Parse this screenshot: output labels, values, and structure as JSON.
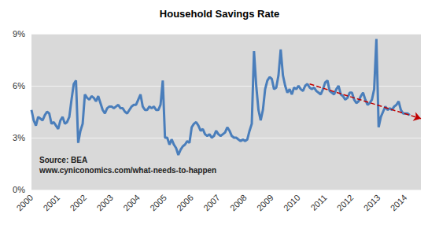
{
  "chart_data": {
    "type": "line",
    "title": "Household Savings Rate",
    "annotations": [
      "Source: BEA",
      "www.cyniconomics.com/what-needs-to-happen"
    ],
    "categories": [
      "2000",
      null,
      null,
      null,
      null,
      null,
      null,
      null,
      null,
      null,
      null,
      null,
      "2001",
      null,
      null,
      null,
      null,
      null,
      null,
      null,
      null,
      null,
      null,
      null,
      "2002",
      null,
      null,
      null,
      null,
      null,
      null,
      null,
      null,
      null,
      null,
      null,
      "2003",
      null,
      null,
      null,
      null,
      null,
      null,
      null,
      null,
      null,
      null,
      null,
      "2004",
      null,
      null,
      null,
      null,
      null,
      null,
      null,
      null,
      null,
      null,
      null,
      "2005",
      null,
      null,
      null,
      null,
      null,
      null,
      null,
      null,
      null,
      null,
      null,
      "2006",
      null,
      null,
      null,
      null,
      null,
      null,
      null,
      null,
      null,
      null,
      null,
      "2007",
      null,
      null,
      null,
      null,
      null,
      null,
      null,
      null,
      null,
      null,
      null,
      "2008",
      null,
      null,
      null,
      null,
      null,
      null,
      null,
      null,
      null,
      null,
      null,
      "2009",
      null,
      null,
      null,
      null,
      null,
      null,
      null,
      null,
      null,
      null,
      null,
      "2010",
      null,
      null,
      null,
      null,
      null,
      null,
      null,
      null,
      null,
      null,
      null,
      "2011",
      null,
      null,
      null,
      null,
      null,
      null,
      null,
      null,
      null,
      null,
      null,
      "2012",
      null,
      null,
      null,
      null,
      null,
      null,
      null,
      null,
      null,
      null,
      null,
      "2013",
      null,
      null,
      null,
      null,
      null,
      null,
      null,
      null,
      null,
      null,
      null,
      "2014",
      null,
      null,
      null,
      null,
      null,
      null,
      null
    ],
    "series": [
      {
        "color": "#4a7ebb",
        "line_style": "solid",
        "values": [
          4.6,
          4.0,
          3.7,
          4.2,
          4.1,
          4.0,
          4.3,
          4.5,
          4.4,
          3.8,
          3.9,
          3.7,
          3.5,
          4.0,
          4.2,
          3.8,
          3.9,
          4.2,
          5.2,
          6.1,
          6.3,
          2.7,
          3.4,
          3.8,
          5.5,
          5.3,
          5.2,
          5.4,
          5.3,
          5.1,
          5.4,
          5.0,
          4.6,
          4.4,
          4.7,
          4.8,
          4.8,
          4.7,
          4.8,
          4.9,
          4.7,
          4.7,
          4.5,
          4.4,
          4.6,
          4.8,
          4.9,
          4.9,
          5.2,
          5.5,
          4.8,
          4.6,
          4.6,
          4.8,
          4.7,
          4.8,
          4.6,
          4.6,
          4.9,
          6.3,
          3.0,
          3.0,
          2.6,
          2.9,
          2.6,
          2.4,
          2.0,
          2.3,
          2.5,
          2.6,
          2.8,
          2.7,
          3.6,
          3.8,
          3.9,
          3.7,
          3.4,
          3.5,
          3.2,
          3.1,
          3.2,
          3.0,
          3.1,
          3.4,
          3.2,
          3.1,
          3.2,
          3.3,
          3.6,
          3.4,
          3.1,
          3.0,
          3.0,
          2.9,
          2.8,
          2.9,
          2.8,
          2.9,
          3.4,
          3.8,
          8.0,
          6.0,
          4.6,
          4.0,
          4.6,
          5.8,
          6.3,
          6.5,
          6.4,
          5.8,
          5.9,
          6.6,
          8.1,
          6.6,
          6.0,
          5.6,
          5.8,
          5.5,
          5.9,
          5.8,
          6.0,
          5.8,
          5.7,
          6.0,
          6.1,
          5.9,
          5.8,
          5.9,
          5.7,
          5.6,
          5.5,
          5.8,
          6.2,
          6.3,
          5.7,
          5.6,
          5.5,
          5.8,
          6.0,
          5.5,
          5.4,
          5.2,
          5.3,
          5.6,
          5.6,
          5.2,
          5.0,
          5.1,
          5.4,
          5.6,
          5.2,
          4.9,
          5.0,
          5.2,
          5.8,
          8.7,
          3.6,
          4.2,
          4.5,
          4.8,
          4.6,
          4.7,
          4.6,
          4.8,
          4.9,
          5.1,
          4.6,
          4.4,
          4.4,
          4.4,
          4.3,
          null,
          null,
          null,
          null,
          null
        ]
      },
      {
        "color": "#c00000",
        "line_style": "dashed",
        "marker": "arrow",
        "values": [
          null,
          null,
          null,
          null,
          null,
          null,
          null,
          null,
          null,
          null,
          null,
          null,
          null,
          null,
          null,
          null,
          null,
          null,
          null,
          null,
          null,
          null,
          null,
          null,
          null,
          null,
          null,
          null,
          null,
          null,
          null,
          null,
          null,
          null,
          null,
          null,
          null,
          null,
          null,
          null,
          null,
          null,
          null,
          null,
          null,
          null,
          null,
          null,
          null,
          null,
          null,
          null,
          null,
          null,
          null,
          null,
          null,
          null,
          null,
          null,
          null,
          null,
          null,
          null,
          null,
          null,
          null,
          null,
          null,
          null,
          null,
          null,
          null,
          null,
          null,
          null,
          null,
          null,
          null,
          null,
          null,
          null,
          null,
          null,
          null,
          null,
          null,
          null,
          null,
          null,
          null,
          null,
          null,
          null,
          null,
          null,
          null,
          null,
          null,
          null,
          null,
          null,
          null,
          null,
          null,
          null,
          null,
          null,
          null,
          null,
          null,
          null,
          null,
          null,
          null,
          null,
          null,
          null,
          null,
          null,
          null,
          null,
          null,
          null,
          null,
          6.1,
          null,
          null,
          null,
          null,
          null,
          null,
          null,
          null,
          null,
          null,
          null,
          null,
          null,
          null,
          null,
          null,
          null,
          null,
          null,
          null,
          null,
          null,
          null,
          null,
          null,
          null,
          null,
          null,
          null,
          null,
          null,
          null,
          null,
          null,
          null,
          null,
          null,
          null,
          null,
          null,
          null,
          null,
          null,
          null,
          null,
          null,
          null,
          null,
          null,
          4.1
        ]
      }
    ],
    "ylim": [
      0,
      9
    ],
    "yticks": [
      {
        "value": 0,
        "label": "0%"
      },
      {
        "value": 3,
        "label": "3%"
      },
      {
        "value": 6,
        "label": "6%"
      },
      {
        "value": 9,
        "label": "9%"
      }
    ],
    "grid": true
  }
}
